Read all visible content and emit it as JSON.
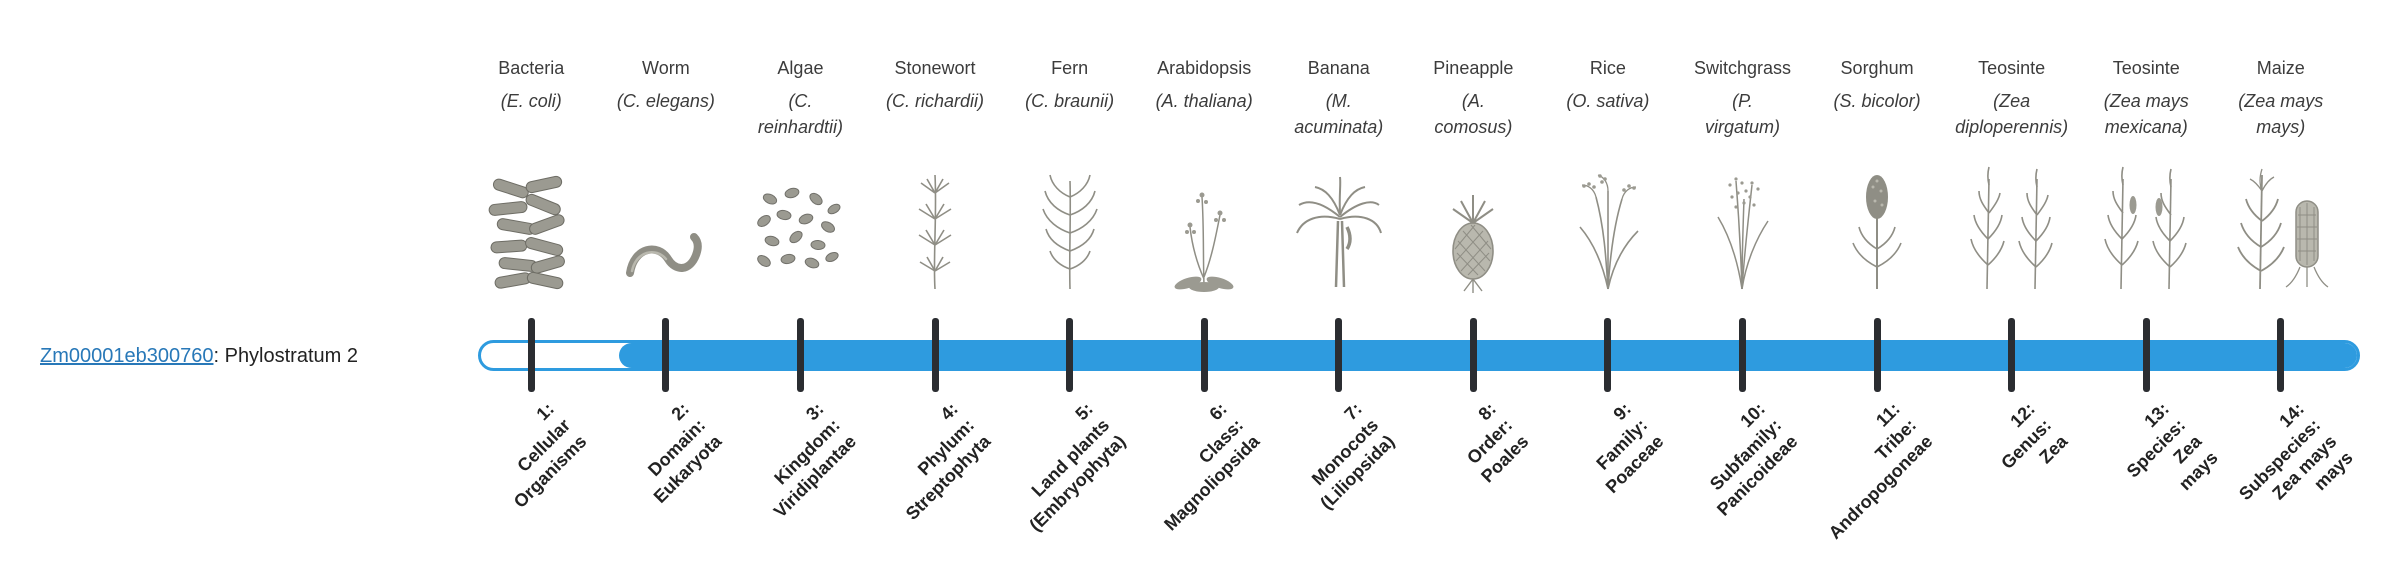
{
  "gene": {
    "id": "Zm00001eb300760",
    "label_suffix": ": Phylostratum 2",
    "phylostratum": 2
  },
  "colors": {
    "bar_fill": "#2E9BDF",
    "bar_empty": "#FFFFFF",
    "tick": "#2B2D31",
    "link": "#2878B8",
    "illustration": "#8F8E85"
  },
  "timeline": {
    "strata_count": 14,
    "origin_stratum": 2
  },
  "strata": [
    {
      "index": 1,
      "common_name": "Bacteria",
      "scientific_name": "(E. coli)",
      "icon": "bacteria-icon",
      "rank_label": "1:\nCellular\nOrganisms"
    },
    {
      "index": 2,
      "common_name": "Worm",
      "scientific_name": "(C. elegans)",
      "icon": "worm-icon",
      "rank_label": "2:\nDomain:\nEukaryota"
    },
    {
      "index": 3,
      "common_name": "Algae",
      "scientific_name": "(C.\nreinhardtii)",
      "icon": "algae-icon",
      "rank_label": "3:\nKingdom:\nViridiplantae"
    },
    {
      "index": 4,
      "common_name": "Stonewort",
      "scientific_name": "(C. richardii)",
      "icon": "stonewort-icon",
      "rank_label": "4:\nPhylum:\nStreptophyta"
    },
    {
      "index": 5,
      "common_name": "Fern",
      "scientific_name": "(C. braunii)",
      "icon": "fern-icon",
      "rank_label": "5:\nLand plants\n(Embryophyta)"
    },
    {
      "index": 6,
      "common_name": "Arabidopsis",
      "scientific_name": "(A. thaliana)",
      "icon": "arabidopsis-icon",
      "rank_label": "6:\nClass:\nMagnoliopsida"
    },
    {
      "index": 7,
      "common_name": "Banana",
      "scientific_name": "(M.\nacuminata)",
      "icon": "banana-icon",
      "rank_label": "7:\nMonocots\n(Liliopsida)"
    },
    {
      "index": 8,
      "common_name": "Pineapple",
      "scientific_name": "(A.\ncomosus)",
      "icon": "pineapple-icon",
      "rank_label": "8:\nOrder:\nPoales"
    },
    {
      "index": 9,
      "common_name": "Rice",
      "scientific_name": "(O. sativa)",
      "icon": "rice-icon",
      "rank_label": "9:\nFamily:\nPoaceae"
    },
    {
      "index": 10,
      "common_name": "Switchgrass",
      "scientific_name": "(P.\nvirgatum)",
      "icon": "switchgrass-icon",
      "rank_label": "10:\nSubfamily:\nPanicoideae"
    },
    {
      "index": 11,
      "common_name": "Sorghum",
      "scientific_name": "(S. bicolor)",
      "icon": "sorghum-icon",
      "rank_label": "11:\nTribe:\nAndropogoneae"
    },
    {
      "index": 12,
      "common_name": "Teosinte",
      "scientific_name": "(Zea\ndiploperennis)",
      "icon": "teosinte-diploperennis-icon",
      "rank_label": "12:\nGenus:\nZea"
    },
    {
      "index": 13,
      "common_name": "Teosinte",
      "scientific_name": "(Zea mays\nmexicana)",
      "icon": "teosinte-mexicana-icon",
      "rank_label": "13:\nSpecies:\nZea\nmays"
    },
    {
      "index": 14,
      "common_name": "Maize",
      "scientific_name": "(Zea mays\nmays)",
      "icon": "maize-icon",
      "rank_label": "14:\nSubspecies:\nZea mays\nmays"
    }
  ]
}
